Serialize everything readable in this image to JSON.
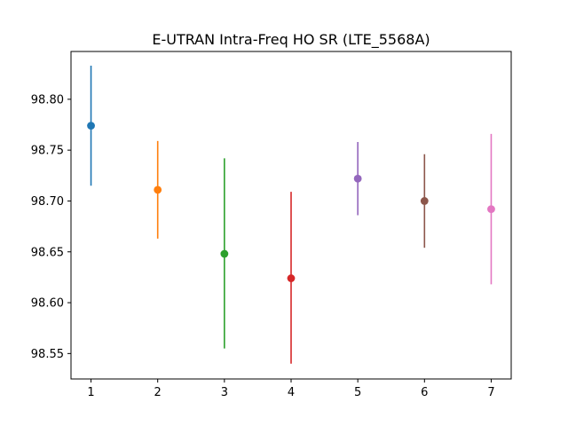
{
  "chart_data": {
    "type": "scatter",
    "title": "E-UTRAN Intra-Freq HO SR (LTE_5568A)",
    "xlabel": "",
    "ylabel": "",
    "x_ticks": [
      1,
      2,
      3,
      4,
      5,
      6,
      7
    ],
    "y_ticks": [
      "98.55",
      "98.60",
      "98.65",
      "98.70",
      "98.75",
      "98.80"
    ],
    "xlim": [
      0.7,
      7.3
    ],
    "ylim": [
      98.525,
      98.847
    ],
    "grid": false,
    "points": [
      {
        "x": 1,
        "y": 98.774,
        "low": 98.715,
        "high": 98.833,
        "color": "#1f77b4"
      },
      {
        "x": 2,
        "y": 98.711,
        "low": 98.663,
        "high": 98.759,
        "color": "#ff7f0e"
      },
      {
        "x": 3,
        "y": 98.648,
        "low": 98.555,
        "high": 98.742,
        "color": "#2ca02c"
      },
      {
        "x": 4,
        "y": 98.624,
        "low": 98.54,
        "high": 98.709,
        "color": "#d62728"
      },
      {
        "x": 5,
        "y": 98.722,
        "low": 98.686,
        "high": 98.758,
        "color": "#9467bd"
      },
      {
        "x": 6,
        "y": 98.7,
        "low": 98.654,
        "high": 98.746,
        "color": "#8c564b"
      },
      {
        "x": 7,
        "y": 98.692,
        "low": 98.618,
        "high": 98.766,
        "color": "#e377c2"
      }
    ]
  }
}
